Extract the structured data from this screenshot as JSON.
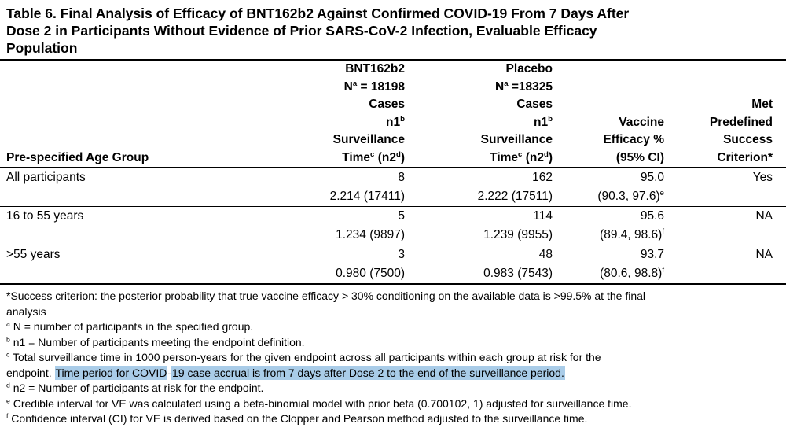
{
  "colors": {
    "highlight": "#a9cce8",
    "text": "#000000",
    "background": "#ffffff"
  },
  "title": {
    "lines": [
      "Table 6. Final Analysis of Efficacy of BNT162b2 Against Confirmed COVID-19 From 7 Days After",
      "Dose 2 in Participants Without Evidence of Prior SARS-CoV-2 Infection, Evaluable Efficacy",
      "Population"
    ]
  },
  "table": {
    "row_header": "Pre-specified Age Group",
    "col_headers": {
      "bnt": [
        [
          {
            "t": "BNT162b2"
          }
        ],
        [
          {
            "t": "N"
          },
          {
            "t": "a",
            "sup": true
          },
          {
            "t": " = 18198"
          }
        ],
        [
          {
            "t": "Cases"
          }
        ],
        [
          {
            "t": "n1"
          },
          {
            "t": "b",
            "sup": true
          }
        ],
        [
          {
            "t": "Surveillance"
          }
        ],
        [
          {
            "t": "Time"
          },
          {
            "t": "c",
            "sup": true
          },
          {
            "t": " (n2"
          },
          {
            "t": "d",
            "sup": true
          },
          {
            "t": ")"
          }
        ]
      ],
      "placebo": [
        [
          {
            "t": "Placebo"
          }
        ],
        [
          {
            "t": "N"
          },
          {
            "t": "a",
            "sup": true
          },
          {
            "t": " =18325"
          }
        ],
        [
          {
            "t": "Cases"
          }
        ],
        [
          {
            "t": "n1"
          },
          {
            "t": "b",
            "sup": true
          }
        ],
        [
          {
            "t": "Surveillance"
          }
        ],
        [
          {
            "t": "Time"
          },
          {
            "t": "c",
            "sup": true
          },
          {
            "t": " (n2"
          },
          {
            "t": "d",
            "sup": true
          },
          {
            "t": ")"
          }
        ]
      ],
      "ve": [
        [
          {
            "t": "Vaccine"
          }
        ],
        [
          {
            "t": "Efficacy %"
          }
        ],
        [
          {
            "t": "(95% CI)"
          }
        ]
      ],
      "met": [
        [
          {
            "t": "Met"
          }
        ],
        [
          {
            "t": "Predefined"
          }
        ],
        [
          {
            "t": "Success"
          }
        ],
        [
          {
            "t": "Criterion*"
          }
        ]
      ]
    },
    "rows": [
      {
        "group": "All participants",
        "bnt_cases": "8",
        "bnt_surv": "2.214 (17411)",
        "placebo_cases": "162",
        "placebo_surv": "2.222 (17511)",
        "ve": "95.0",
        "ci": [
          {
            "t": "(90.3, 97.6)"
          },
          {
            "t": "e",
            "sup": true
          }
        ],
        "met": "Yes"
      },
      {
        "group": "16 to 55 years",
        "bnt_cases": "5",
        "bnt_surv": "1.234 (9897)",
        "placebo_cases": "114",
        "placebo_surv": "1.239 (9955)",
        "ve": "95.6",
        "ci": [
          {
            "t": "(89.4, 98.6)"
          },
          {
            "t": "f",
            "sup": true
          }
        ],
        "met": "NA"
      },
      {
        "group": ">55 years",
        "bnt_cases": "3",
        "bnt_surv": "0.980 (7500)",
        "placebo_cases": "48",
        "placebo_surv": "0.983 (7543)",
        "ve": "93.7",
        "ci": [
          {
            "t": "(80.6, 98.8)"
          },
          {
            "t": "f",
            "sup": true
          }
        ],
        "met": "NA"
      }
    ]
  },
  "footnotes": {
    "lines": [
      [
        {
          "t": "*Success criterion: the posterior probability that true vaccine efficacy > 30% conditioning on the available data is >99.5% at the final"
        }
      ],
      [
        {
          "t": "analysis"
        }
      ],
      [
        {
          "t": "a",
          "sup": true
        },
        {
          "t": " N = number of participants in the specified group."
        }
      ],
      [
        {
          "t": "b",
          "sup": true
        },
        {
          "t": " n1 = Number of participants meeting the endpoint definition."
        }
      ],
      [
        {
          "t": "c",
          "sup": true
        },
        {
          "t": " Total surveillance time in 1000 person-years for the given endpoint across all participants within each group at risk for the"
        }
      ],
      [
        {
          "t": "endpoint. "
        },
        {
          "t": "Time period for COVID",
          "hl": true
        },
        {
          "t": "-"
        },
        {
          "t": "19 case accrual is from 7 days after Dose 2 to the end of the surveillance period.",
          "hl": true
        }
      ],
      [
        {
          "t": "d",
          "sup": true
        },
        {
          "t": " n2 = Number of participants at risk for the endpoint."
        }
      ],
      [
        {
          "t": "e",
          "sup": true
        },
        {
          "t": " Credible interval for VE was calculated using a beta-binomial model with prior beta (0.700102, 1) adjusted for surveillance time."
        }
      ],
      [
        {
          "t": "f",
          "sup": true
        },
        {
          "t": " Confidence interval (CI) for VE is derived based on the Clopper and Pearson method adjusted to the surveillance time."
        }
      ]
    ]
  }
}
